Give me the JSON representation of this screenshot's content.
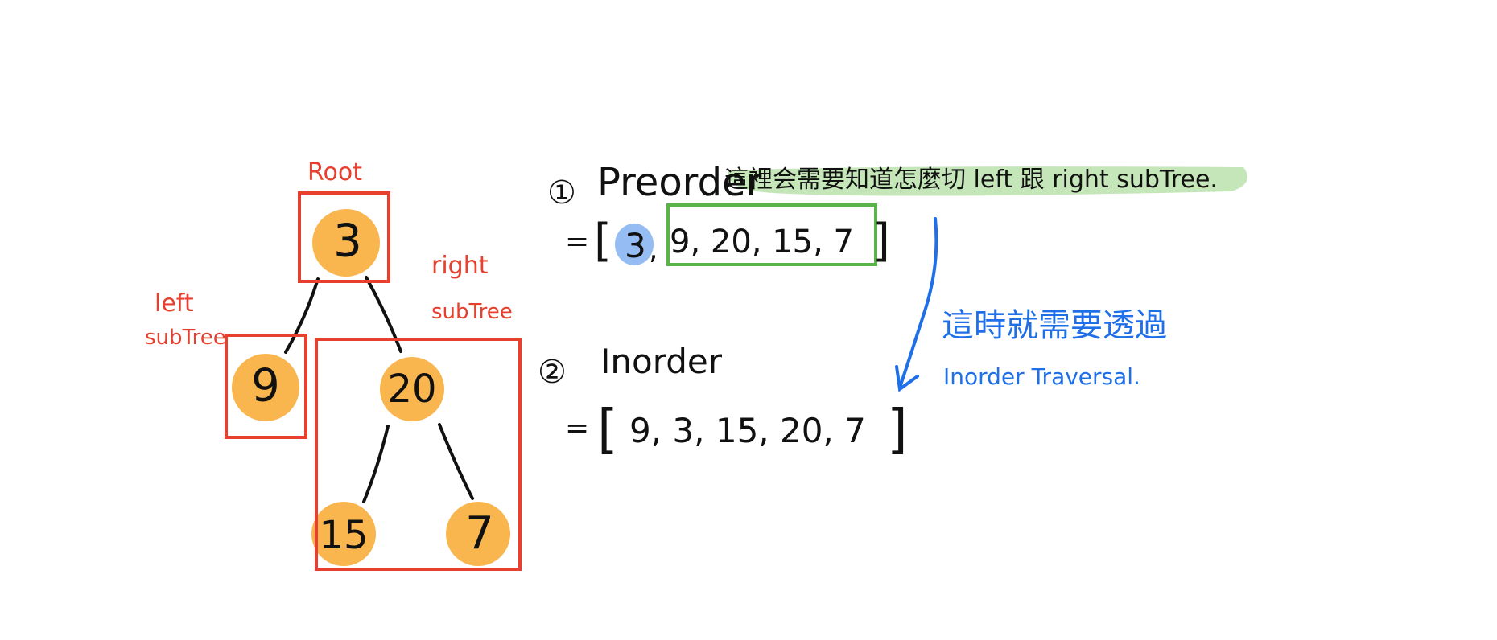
{
  "tree": {
    "root_label": "Root",
    "left_label_1": "left",
    "left_label_2": "subTree",
    "right_label_1": "right",
    "right_label_2": "subTree",
    "nodes": [
      "3",
      "9",
      "20",
      "15",
      "7"
    ]
  },
  "preorder": {
    "number": "①",
    "title": "Preorder",
    "note": "這裡会需要知道怎麼切 left 跟 right subTree.",
    "eq": "=",
    "open": "[",
    "root_value": "3",
    "sep": ",",
    "rest": "9,  20,  15, 7",
    "close": "]"
  },
  "inorder": {
    "number": "②",
    "title": "Inorder",
    "eq": "=",
    "open": "[",
    "values": "9, 3,  15,  20, 7",
    "close": "]"
  },
  "hint": {
    "line1": "這時就需要透過",
    "line2": "Inorder Traversal."
  },
  "colors": {
    "node_fill": "#f9b040",
    "box_red": "#e8402f",
    "box_green": "#5cb24a",
    "highlight_green": "#bfe3b0",
    "highlight_blue": "#8fb8f2",
    "ink_blue": "#1f6fe8"
  }
}
